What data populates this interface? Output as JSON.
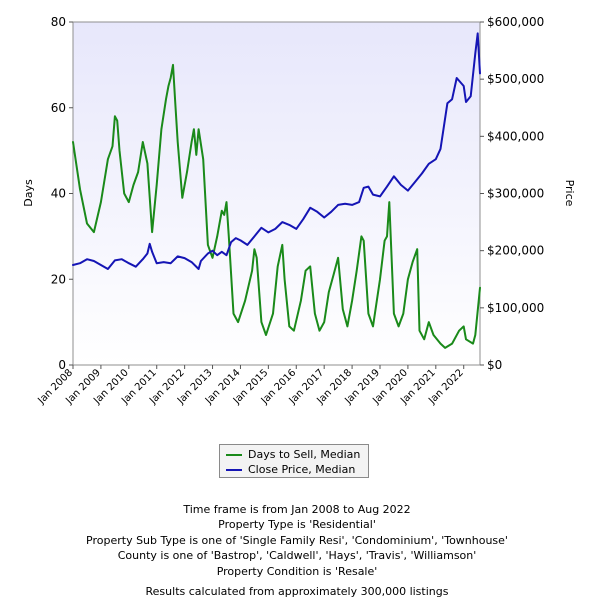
{
  "chart_data": {
    "type": "line",
    "title": "",
    "xlabel": "",
    "ylabel_left": "Days",
    "ylabel_right": "Price",
    "ylim_left": [
      0,
      80
    ],
    "ylim_right": [
      0,
      600000
    ],
    "y_left_ticks": [
      "0",
      "20",
      "40",
      "60",
      "80"
    ],
    "y_right_ticks": [
      "$0",
      "$100,000",
      "$200,000",
      "$300,000",
      "$400,000",
      "$500,000",
      "$600,000"
    ],
    "x_ticks": [
      "Jan 2008",
      "Jan 2009",
      "Jan 2010",
      "Jan 2011",
      "Jan 2012",
      "Jan 2013",
      "Jan 2014",
      "Jan 2015",
      "Jan 2016",
      "Jan 2017",
      "Jan 2018",
      "Jan 2019",
      "Jan 2020",
      "Jan 2021",
      "Jan 2022"
    ],
    "x_range": [
      "Jan 2008",
      "Aug 2022"
    ],
    "grid": false,
    "legend_position": "bottom-center",
    "series": [
      {
        "name": "Days to Sell, Median",
        "axis": "left",
        "color": "#1a8a1a",
        "points": [
          [
            "2008-01",
            52
          ],
          [
            "2008-04",
            41
          ],
          [
            "2008-07",
            33
          ],
          [
            "2008-10",
            31
          ],
          [
            "2009-01",
            38
          ],
          [
            "2009-04",
            48
          ],
          [
            "2009-06",
            51
          ],
          [
            "2009-07",
            58
          ],
          [
            "2009-08",
            57
          ],
          [
            "2009-09",
            50
          ],
          [
            "2009-11",
            40
          ],
          [
            "2010-01",
            38
          ],
          [
            "2010-03",
            42
          ],
          [
            "2010-05",
            45
          ],
          [
            "2010-07",
            52
          ],
          [
            "2010-09",
            47
          ],
          [
            "2010-11",
            31
          ],
          [
            "2011-01",
            42
          ],
          [
            "2011-03",
            55
          ],
          [
            "2011-05",
            62
          ],
          [
            "2011-06",
            65
          ],
          [
            "2011-07",
            67
          ],
          [
            "2011-08",
            70
          ],
          [
            "2011-09",
            61
          ],
          [
            "2011-10",
            52
          ],
          [
            "2011-12",
            39
          ],
          [
            "2012-02",
            45
          ],
          [
            "2012-04",
            52
          ],
          [
            "2012-05",
            55
          ],
          [
            "2012-06",
            49
          ],
          [
            "2012-07",
            55
          ],
          [
            "2012-09",
            48
          ],
          [
            "2012-11",
            28
          ],
          [
            "2013-01",
            25
          ],
          [
            "2013-03",
            30
          ],
          [
            "2013-05",
            36
          ],
          [
            "2013-06",
            35
          ],
          [
            "2013-07",
            38
          ],
          [
            "2013-08",
            30
          ],
          [
            "2013-10",
            12
          ],
          [
            "2013-12",
            10
          ],
          [
            "2014-03",
            15
          ],
          [
            "2014-06",
            22
          ],
          [
            "2014-07",
            27
          ],
          [
            "2014-08",
            25
          ],
          [
            "2014-10",
            10
          ],
          [
            "2014-12",
            7
          ],
          [
            "2015-03",
            12
          ],
          [
            "2015-05",
            23
          ],
          [
            "2015-07",
            28
          ],
          [
            "2015-08",
            20
          ],
          [
            "2015-10",
            9
          ],
          [
            "2015-12",
            8
          ],
          [
            "2016-03",
            15
          ],
          [
            "2016-05",
            22
          ],
          [
            "2016-07",
            23
          ],
          [
            "2016-09",
            12
          ],
          [
            "2016-11",
            8
          ],
          [
            "2017-01",
            10
          ],
          [
            "2017-03",
            17
          ],
          [
            "2017-05",
            21
          ],
          [
            "2017-07",
            25
          ],
          [
            "2017-09",
            13
          ],
          [
            "2017-11",
            9
          ],
          [
            "2018-01",
            15
          ],
          [
            "2018-03",
            22
          ],
          [
            "2018-05",
            30
          ],
          [
            "2018-06",
            29
          ],
          [
            "2018-08",
            12
          ],
          [
            "2018-10",
            9
          ],
          [
            "2019-01",
            20
          ],
          [
            "2019-03",
            29
          ],
          [
            "2019-04",
            30
          ],
          [
            "2019-05",
            38
          ],
          [
            "2019-07",
            12
          ],
          [
            "2019-09",
            9
          ],
          [
            "2019-11",
            12
          ],
          [
            "2020-01",
            20
          ],
          [
            "2020-03",
            24
          ],
          [
            "2020-05",
            27
          ],
          [
            "2020-06",
            8
          ],
          [
            "2020-08",
            6
          ],
          [
            "2020-10",
            10
          ],
          [
            "2020-12",
            7
          ],
          [
            "2021-03",
            5
          ],
          [
            "2021-05",
            4
          ],
          [
            "2021-08",
            5
          ],
          [
            "2021-11",
            8
          ],
          [
            "2022-01",
            9
          ],
          [
            "2022-02",
            6
          ],
          [
            "2022-05",
            5
          ],
          [
            "2022-06",
            7
          ],
          [
            "2022-08",
            18
          ]
        ]
      },
      {
        "name": "Close Price, Median",
        "axis": "right",
        "color": "#1515b5",
        "points": [
          [
            "2008-01",
            175000
          ],
          [
            "2008-04",
            178000
          ],
          [
            "2008-07",
            185000
          ],
          [
            "2008-10",
            182000
          ],
          [
            "2009-01",
            175000
          ],
          [
            "2009-04",
            168000
          ],
          [
            "2009-07",
            183000
          ],
          [
            "2009-10",
            185000
          ],
          [
            "2010-01",
            178000
          ],
          [
            "2010-04",
            172000
          ],
          [
            "2010-07",
            185000
          ],
          [
            "2010-09",
            195000
          ],
          [
            "2010-10",
            212000
          ],
          [
            "2010-11",
            198000
          ],
          [
            "2011-01",
            178000
          ],
          [
            "2011-04",
            180000
          ],
          [
            "2011-07",
            178000
          ],
          [
            "2011-10",
            190000
          ],
          [
            "2012-01",
            187000
          ],
          [
            "2012-04",
            180000
          ],
          [
            "2012-07",
            168000
          ],
          [
            "2012-08",
            182000
          ],
          [
            "2012-11",
            195000
          ],
          [
            "2013-01",
            200000
          ],
          [
            "2013-03",
            192000
          ],
          [
            "2013-05",
            198000
          ],
          [
            "2013-07",
            192000
          ],
          [
            "2013-09",
            215000
          ],
          [
            "2013-11",
            222000
          ],
          [
            "2014-01",
            218000
          ],
          [
            "2014-04",
            210000
          ],
          [
            "2014-07",
            225000
          ],
          [
            "2014-10",
            240000
          ],
          [
            "2015-01",
            232000
          ],
          [
            "2015-04",
            238000
          ],
          [
            "2015-07",
            250000
          ],
          [
            "2015-10",
            245000
          ],
          [
            "2016-01",
            238000
          ],
          [
            "2016-04",
            255000
          ],
          [
            "2016-07",
            275000
          ],
          [
            "2016-10",
            268000
          ],
          [
            "2017-01",
            258000
          ],
          [
            "2017-04",
            268000
          ],
          [
            "2017-07",
            280000
          ],
          [
            "2017-10",
            282000
          ],
          [
            "2018-01",
            280000
          ],
          [
            "2018-04",
            285000
          ],
          [
            "2018-06",
            310000
          ],
          [
            "2018-08",
            312000
          ],
          [
            "2018-10",
            298000
          ],
          [
            "2019-01",
            295000
          ],
          [
            "2019-04",
            312000
          ],
          [
            "2019-07",
            330000
          ],
          [
            "2019-08",
            325000
          ],
          [
            "2019-10",
            315000
          ],
          [
            "2020-01",
            305000
          ],
          [
            "2020-04",
            320000
          ],
          [
            "2020-07",
            335000
          ],
          [
            "2020-10",
            352000
          ],
          [
            "2021-01",
            360000
          ],
          [
            "2021-03",
            378000
          ],
          [
            "2021-06",
            458000
          ],
          [
            "2021-08",
            465000
          ],
          [
            "2021-10",
            502000
          ],
          [
            "2022-01",
            488000
          ],
          [
            "2022-02",
            460000
          ],
          [
            "2022-04",
            470000
          ],
          [
            "2022-06",
            545000
          ],
          [
            "2022-07",
            580000
          ],
          [
            "2022-08",
            510000
          ]
        ]
      }
    ]
  },
  "notes": [
    "Time frame is from Jan 2008 to Aug 2022",
    "Property Type is 'Residential'",
    "Property Sub Type is one of 'Single Family Resi', 'Condominium', 'Townhouse'",
    "County is one of 'Bastrop', 'Caldwell', 'Hays', 'Travis', 'Williamson'",
    "Property Condition is 'Resale'"
  ],
  "results_note": "Results calculated from approximately 300,000 listings"
}
